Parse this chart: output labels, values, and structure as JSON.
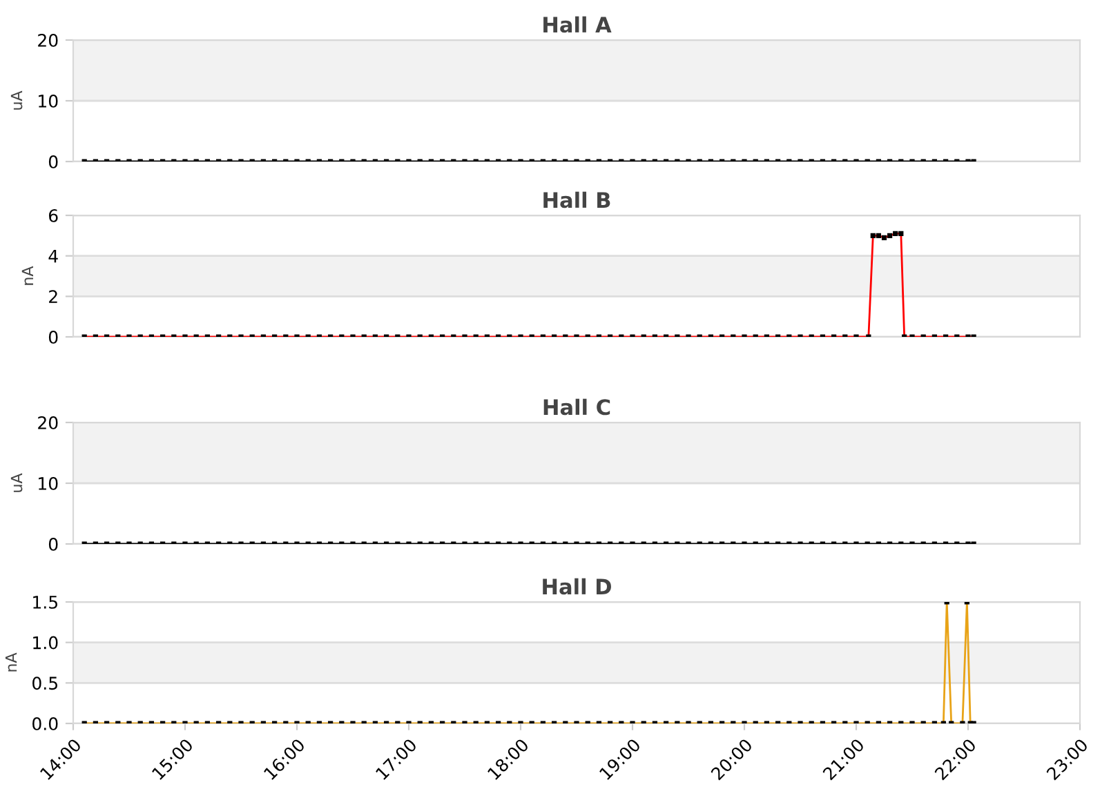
{
  "chart_data": [
    {
      "type": "line",
      "title": "Hall A",
      "ylabel": "uA",
      "xlim": [
        14,
        23
      ],
      "ylim": [
        0,
        20
      ],
      "yticks": [
        0,
        10,
        20
      ],
      "tick_labels": "y",
      "grid": "y",
      "marker": "square",
      "line_style": "solid",
      "bands": [
        {
          "axis": "y",
          "from": 10,
          "to": 20,
          "color": "#f2f2f2"
        }
      ],
      "series": [
        {
          "color": "#000000",
          "x": [
            14.1,
            14.2,
            14.3,
            14.4,
            14.5,
            14.6,
            14.7,
            14.8,
            14.9,
            15.0,
            15.1,
            15.2,
            15.3,
            15.4,
            15.5,
            15.6,
            15.7,
            15.8,
            15.9,
            16.0,
            16.1,
            16.2,
            16.3,
            16.4,
            16.5,
            16.6,
            16.7,
            16.8,
            16.9,
            17.0,
            17.1,
            17.2,
            17.3,
            17.4,
            17.5,
            17.6,
            17.7,
            17.8,
            17.9,
            18.0,
            18.1,
            18.2,
            18.3,
            18.4,
            18.5,
            18.6,
            18.7,
            18.8,
            18.9,
            19.0,
            19.1,
            19.2,
            19.3,
            19.4,
            19.5,
            19.6,
            19.7,
            19.8,
            19.9,
            20.0,
            20.1,
            20.2,
            20.3,
            20.4,
            20.5,
            20.6,
            20.7,
            20.8,
            20.9,
            21.0,
            21.1,
            21.2,
            21.3,
            21.4,
            21.5,
            21.6,
            21.7,
            21.8,
            21.9,
            22.0,
            22.05
          ],
          "values": [
            0,
            0,
            0,
            0,
            0,
            0,
            0,
            0,
            0,
            0,
            0,
            0,
            0,
            0,
            0,
            0,
            0,
            0,
            0,
            0,
            0,
            0,
            0,
            0,
            0,
            0,
            0,
            0,
            0,
            0,
            0,
            0,
            0,
            0,
            0,
            0,
            0,
            0,
            0,
            0,
            0,
            0,
            0,
            0,
            0,
            0,
            0,
            0,
            0,
            0,
            0,
            0,
            0,
            0,
            0,
            0,
            0,
            0,
            0,
            0,
            0,
            0,
            0,
            0,
            0,
            0,
            0,
            0,
            0,
            0,
            0,
            0,
            0,
            0,
            0,
            0,
            0,
            0,
            0,
            0,
            0
          ]
        }
      ]
    },
    {
      "type": "line",
      "title": "Hall B",
      "ylabel": "nA",
      "xlim": [
        14,
        23
      ],
      "ylim": [
        0,
        6
      ],
      "yticks": [
        0,
        2,
        4,
        6
      ],
      "tick_labels": "y",
      "grid": "y",
      "marker": "square",
      "line_style": "solid",
      "bands": [
        {
          "axis": "y",
          "from": 2,
          "to": 4,
          "color": "#f2f2f2"
        }
      ],
      "series": [
        {
          "color": "#ff0000",
          "x": [
            14.1,
            14.2,
            14.3,
            14.4,
            14.5,
            14.6,
            14.7,
            14.8,
            14.9,
            15.0,
            15.1,
            15.2,
            15.3,
            15.4,
            15.5,
            15.6,
            15.7,
            15.8,
            15.9,
            16.0,
            16.1,
            16.2,
            16.3,
            16.4,
            16.5,
            16.6,
            16.7,
            16.8,
            16.9,
            17.0,
            17.1,
            17.2,
            17.3,
            17.4,
            17.5,
            17.6,
            17.7,
            17.8,
            17.9,
            18.0,
            18.1,
            18.2,
            18.3,
            18.4,
            18.5,
            18.6,
            18.7,
            18.8,
            18.9,
            19.0,
            19.1,
            19.2,
            19.3,
            19.4,
            19.5,
            19.6,
            19.7,
            19.8,
            19.9,
            20.0,
            20.1,
            20.2,
            20.3,
            20.4,
            20.5,
            20.6,
            20.7,
            20.8,
            20.9,
            21.0,
            21.11,
            21.15,
            21.2,
            21.25,
            21.3,
            21.35,
            21.4,
            21.43,
            21.5,
            21.6,
            21.7,
            21.8,
            21.9,
            22.0,
            22.05
          ],
          "values": [
            0,
            0,
            0,
            0,
            0,
            0,
            0,
            0,
            0,
            0,
            0,
            0,
            0,
            0,
            0,
            0,
            0,
            0,
            0,
            0,
            0,
            0,
            0,
            0,
            0,
            0,
            0,
            0,
            0,
            0,
            0,
            0,
            0,
            0,
            0,
            0,
            0,
            0,
            0,
            0,
            0,
            0,
            0,
            0,
            0,
            0,
            0,
            0,
            0,
            0,
            0,
            0,
            0,
            0,
            0,
            0,
            0,
            0,
            0,
            0,
            0,
            0,
            0,
            0,
            0,
            0,
            0,
            0,
            0,
            0,
            0,
            5.0,
            5.0,
            4.9,
            5.0,
            5.1,
            5.1,
            0,
            0,
            0,
            0,
            0,
            0,
            0,
            0
          ]
        }
      ]
    },
    {
      "type": "line",
      "title": "Hall C",
      "ylabel": "uA",
      "xlim": [
        14,
        23
      ],
      "ylim": [
        0,
        20
      ],
      "yticks": [
        0,
        10,
        20
      ],
      "tick_labels": "y",
      "grid": "y",
      "marker": "square",
      "line_style": "solid",
      "bands": [
        {
          "axis": "y",
          "from": 10,
          "to": 20,
          "color": "#f2f2f2"
        }
      ],
      "series": [
        {
          "color": "#000000",
          "x": [
            14.1,
            14.2,
            14.3,
            14.4,
            14.5,
            14.6,
            14.7,
            14.8,
            14.9,
            15.0,
            15.1,
            15.2,
            15.3,
            15.4,
            15.5,
            15.6,
            15.7,
            15.8,
            15.9,
            16.0,
            16.1,
            16.2,
            16.3,
            16.4,
            16.5,
            16.6,
            16.7,
            16.8,
            16.9,
            17.0,
            17.1,
            17.2,
            17.3,
            17.4,
            17.5,
            17.6,
            17.7,
            17.8,
            17.9,
            18.0,
            18.1,
            18.2,
            18.3,
            18.4,
            18.5,
            18.6,
            18.7,
            18.8,
            18.9,
            19.0,
            19.1,
            19.2,
            19.3,
            19.4,
            19.5,
            19.6,
            19.7,
            19.8,
            19.9,
            20.0,
            20.1,
            20.2,
            20.3,
            20.4,
            20.5,
            20.6,
            20.7,
            20.8,
            20.9,
            21.0,
            21.1,
            21.2,
            21.3,
            21.4,
            21.5,
            21.6,
            21.7,
            21.8,
            21.9,
            22.0,
            22.05
          ],
          "values": [
            0,
            0,
            0,
            0,
            0,
            0,
            0,
            0,
            0,
            0,
            0,
            0,
            0,
            0,
            0,
            0,
            0,
            0,
            0,
            0,
            0,
            0,
            0,
            0,
            0,
            0,
            0,
            0,
            0,
            0,
            0,
            0,
            0,
            0,
            0,
            0,
            0,
            0,
            0,
            0,
            0,
            0,
            0,
            0,
            0,
            0,
            0,
            0,
            0,
            0,
            0,
            0,
            0,
            0,
            0,
            0,
            0,
            0,
            0,
            0,
            0,
            0,
            0,
            0,
            0,
            0,
            0,
            0,
            0,
            0,
            0,
            0,
            0,
            0,
            0,
            0,
            0,
            0,
            0,
            0,
            0
          ]
        }
      ]
    },
    {
      "type": "line",
      "title": "Hall D",
      "ylabel": "nA",
      "xlim": [
        14,
        23
      ],
      "ylim": [
        0,
        1.5
      ],
      "yticks": [
        {
          "value": 0,
          "label": "0.0"
        },
        0.5,
        {
          "value": 1,
          "label": "1.0"
        },
        1.5
      ],
      "grid": "y",
      "marker": "square",
      "line_style": "solid",
      "xticks": [
        {
          "value": 14,
          "label": "14:00"
        },
        {
          "value": 15,
          "label": "15:00"
        },
        {
          "value": 16,
          "label": "16:00"
        },
        {
          "value": 17,
          "label": "17:00"
        },
        {
          "value": 18,
          "label": "18:00"
        },
        {
          "value": 19,
          "label": "19:00"
        },
        {
          "value": 20,
          "label": "20:00"
        },
        {
          "value": 21,
          "label": "21:00"
        },
        {
          "value": 22,
          "label": "22:00"
        },
        {
          "value": 23,
          "label": "23:00"
        }
      ],
      "bands": [
        {
          "axis": "y",
          "from": 0.5,
          "to": 1,
          "color": "#f2f2f2"
        }
      ],
      "series": [
        {
          "color": "#e8a317",
          "x": [
            14.1,
            14.2,
            14.3,
            14.4,
            14.5,
            14.6,
            14.7,
            14.8,
            14.9,
            15.0,
            15.1,
            15.2,
            15.3,
            15.4,
            15.5,
            15.6,
            15.7,
            15.8,
            15.9,
            16.0,
            16.1,
            16.2,
            16.3,
            16.4,
            16.5,
            16.6,
            16.7,
            16.8,
            16.9,
            17.0,
            17.1,
            17.2,
            17.3,
            17.4,
            17.5,
            17.6,
            17.7,
            17.8,
            17.9,
            18.0,
            18.1,
            18.2,
            18.3,
            18.4,
            18.5,
            18.6,
            18.7,
            18.8,
            18.9,
            19.0,
            19.1,
            19.2,
            19.3,
            19.4,
            19.5,
            19.6,
            19.7,
            19.8,
            19.9,
            20.0,
            20.1,
            20.2,
            20.3,
            20.4,
            20.5,
            20.6,
            20.7,
            20.8,
            20.9,
            21.0,
            21.1,
            21.2,
            21.3,
            21.4,
            21.5,
            21.6,
            21.7,
            21.78,
            21.81,
            21.85,
            21.95,
            21.99,
            22.02,
            22.05
          ],
          "values": [
            0,
            0,
            0,
            0,
            0,
            0,
            0,
            0,
            0,
            0,
            0,
            0,
            0,
            0,
            0,
            0,
            0,
            0,
            0,
            0,
            0,
            0,
            0,
            0,
            0,
            0,
            0,
            0,
            0,
            0,
            0,
            0,
            0,
            0,
            0,
            0,
            0,
            0,
            0,
            0,
            0,
            0,
            0,
            0,
            0,
            0,
            0,
            0,
            0,
            0,
            0,
            0,
            0,
            0,
            0,
            0,
            0,
            0,
            0,
            0,
            0,
            0,
            0,
            0,
            0,
            0,
            0,
            0,
            0,
            0,
            0,
            0,
            0,
            0,
            0,
            0,
            0,
            0,
            1.5,
            0,
            0,
            1.5,
            0,
            0
          ]
        }
      ]
    }
  ]
}
